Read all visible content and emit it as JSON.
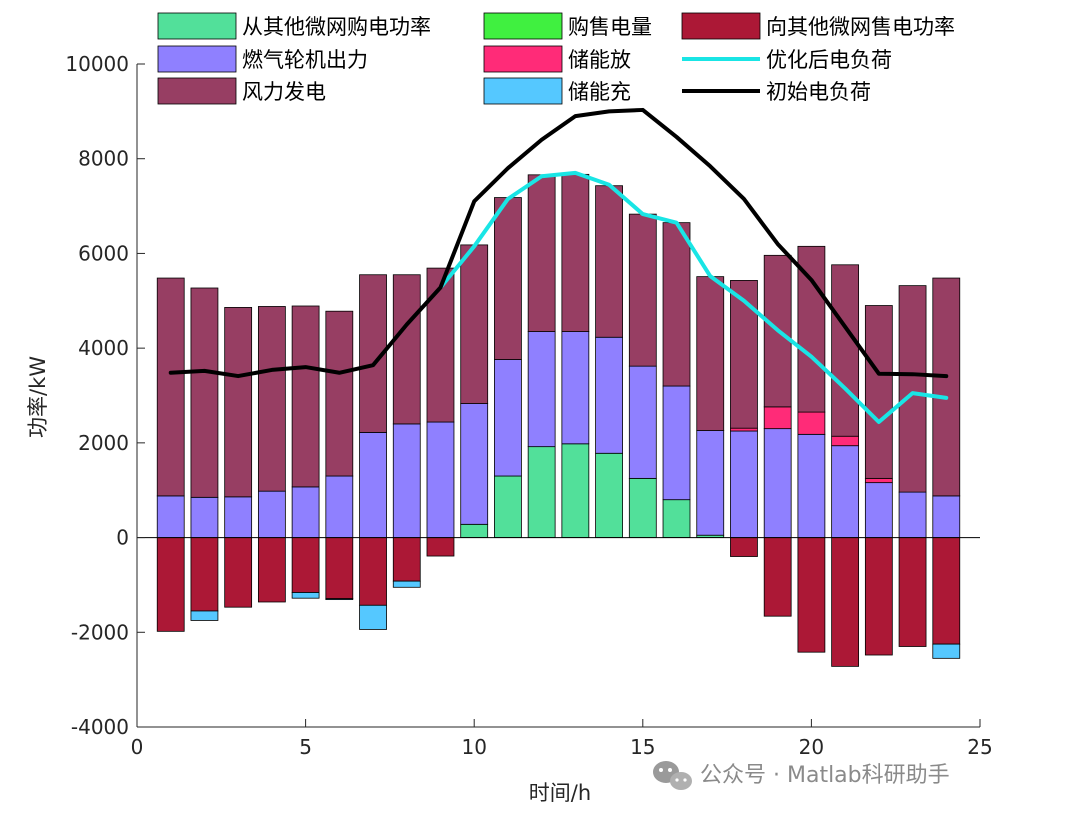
{
  "chart_data": {
    "type": "bar",
    "xlabel": "时间/h",
    "ylabel": "功率/kW",
    "xlim": [
      0,
      25
    ],
    "ylim": [
      -4000,
      10000
    ],
    "xticks": [
      "0",
      "5",
      "10",
      "15",
      "20",
      "25"
    ],
    "yticks": [
      "-4000",
      "-2000",
      "0",
      "2000",
      "4000",
      "6000",
      "8000",
      "10000"
    ],
    "grid": false,
    "legend_position": "top",
    "x": [
      1,
      2,
      3,
      4,
      5,
      6,
      7,
      8,
      9,
      10,
      11,
      12,
      13,
      14,
      15,
      16,
      17,
      18,
      19,
      20,
      21,
      22,
      23,
      24
    ],
    "series": [
      {
        "name": "从其他微网购电功率",
        "kind": "bar",
        "color": "#52E09A",
        "values": [
          0,
          0,
          0,
          0,
          0,
          0,
          0,
          0,
          0,
          280,
          1300,
          1920,
          1980,
          1780,
          1250,
          800,
          50,
          0,
          0,
          0,
          0,
          0,
          0,
          0
        ]
      },
      {
        "name": "购售电量",
        "kind": "bar",
        "color": "#40F040",
        "values": [
          0,
          0,
          0,
          0,
          0,
          0,
          0,
          0,
          0,
          0,
          0,
          0,
          0,
          0,
          0,
          0,
          0,
          0,
          0,
          0,
          0,
          0,
          0,
          0
        ]
      },
      {
        "name": "向其他微网售电功率",
        "kind": "bar",
        "color": "#AC1836",
        "values": [
          -1980,
          -1550,
          -1470,
          -1360,
          -1160,
          -1290,
          -1430,
          -920,
          -390,
          0,
          0,
          0,
          0,
          0,
          0,
          0,
          0,
          -400,
          -1660,
          -2420,
          -2720,
          -2480,
          -2300,
          -2250
        ]
      },
      {
        "name": "燃气轮机出力",
        "kind": "bar",
        "color": "#8F80FF",
        "values": [
          880,
          850,
          860,
          980,
          1070,
          1300,
          2220,
          2400,
          2440,
          2550,
          2460,
          2430,
          2370,
          2450,
          2370,
          2400,
          2210,
          2250,
          2300,
          2180,
          1940,
          1160,
          960,
          880
        ]
      },
      {
        "name": "储能放",
        "kind": "bar",
        "color": "#FF2B78",
        "values": [
          0,
          0,
          0,
          0,
          0,
          0,
          0,
          0,
          0,
          0,
          0,
          0,
          0,
          0,
          0,
          0,
          0,
          60,
          460,
          470,
          200,
          90,
          0,
          0
        ]
      },
      {
        "name": "储能充",
        "kind": "bar",
        "color": "#55C8FF",
        "values": [
          0,
          -200,
          0,
          0,
          -120,
          -20,
          -510,
          -130,
          0,
          0,
          0,
          0,
          0,
          0,
          0,
          0,
          0,
          0,
          0,
          0,
          0,
          0,
          0,
          -300
        ]
      },
      {
        "name": "风力发电",
        "kind": "bar",
        "color": "#973E63",
        "values": [
          4600,
          4420,
          4000,
          3900,
          3820,
          3480,
          3330,
          3150,
          3250,
          3350,
          3420,
          3310,
          3320,
          3200,
          3210,
          3450,
          3250,
          3120,
          3200,
          3500,
          3620,
          3650,
          4360,
          4600
        ]
      },
      {
        "name": "优化后电负荷",
        "kind": "line",
        "color": "#19E5E5",
        "values": [
          null,
          null,
          null,
          null,
          null,
          null,
          null,
          null,
          5280,
          6150,
          7150,
          7630,
          7700,
          7450,
          6830,
          6650,
          5520,
          5000,
          4380,
          3820,
          3150,
          2440,
          3050,
          2950
        ]
      },
      {
        "name": "初始电负荷",
        "kind": "line",
        "color": "#000000",
        "values": [
          3480,
          3520,
          3410,
          3540,
          3600,
          3480,
          3640,
          4500,
          5280,
          7100,
          7800,
          8400,
          8900,
          9000,
          9030,
          8460,
          7840,
          7150,
          6200,
          5440,
          4450,
          3460,
          3450,
          3410
        ]
      }
    ],
    "legend_order": [
      "从其他微网购电功率",
      "购售电量",
      "向其他微网售电功率",
      "燃气轮机出力",
      "储能放",
      "优化后电负荷",
      "风力发电",
      "储能充",
      "初始电负荷"
    ]
  },
  "watermark": {
    "text": "公众号 · Matlab科研助手",
    "icon": "wechat-icon"
  }
}
